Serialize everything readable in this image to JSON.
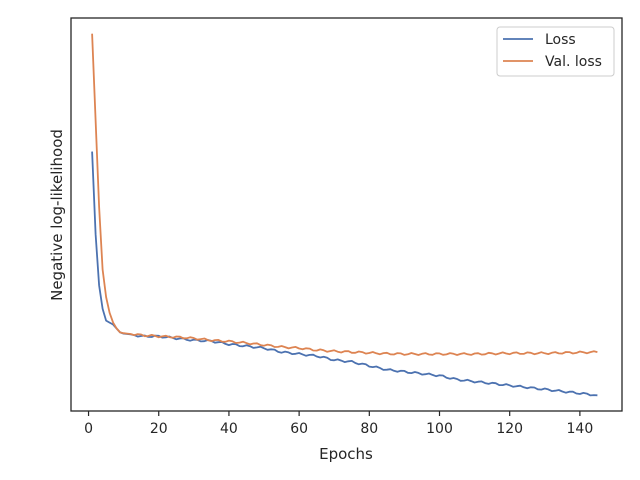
{
  "chart_data": {
    "type": "line",
    "xlabel": "Epochs",
    "ylabel": "Negative log-likelihood",
    "xlim": [
      -5,
      152
    ],
    "ylim": [
      0,
      1
    ],
    "x_ticks": [
      0,
      20,
      40,
      60,
      80,
      100,
      120,
      140
    ],
    "y_ticks_shown": false,
    "grid": false,
    "legend_position": "top-right",
    "series": [
      {
        "name": "Loss",
        "color": "#4c72b0",
        "x": [
          1,
          2,
          3,
          4,
          5,
          6,
          7,
          8,
          9,
          10,
          12,
          15,
          20,
          25,
          30,
          35,
          40,
          45,
          50,
          55,
          60,
          65,
          70,
          75,
          80,
          85,
          90,
          95,
          100,
          105,
          110,
          115,
          120,
          125,
          130,
          135,
          140,
          145
        ],
        "y": [
          0.66,
          0.45,
          0.32,
          0.26,
          0.23,
          0.225,
          0.22,
          0.21,
          0.2,
          0.197,
          0.195,
          0.19,
          0.19,
          0.185,
          0.18,
          0.178,
          0.17,
          0.165,
          0.16,
          0.15,
          0.145,
          0.14,
          0.13,
          0.125,
          0.115,
          0.105,
          0.1,
          0.095,
          0.09,
          0.08,
          0.075,
          0.07,
          0.065,
          0.06,
          0.055,
          0.05,
          0.045,
          0.04
        ]
      },
      {
        "name": "Val. loss",
        "color": "#dd8452",
        "x": [
          1,
          2,
          3,
          4,
          5,
          6,
          7,
          8,
          9,
          10,
          12,
          15,
          20,
          25,
          30,
          35,
          40,
          45,
          50,
          55,
          60,
          65,
          70,
          75,
          80,
          85,
          90,
          95,
          100,
          105,
          110,
          115,
          120,
          125,
          130,
          135,
          140,
          145
        ],
        "y": [
          0.96,
          0.74,
          0.52,
          0.36,
          0.29,
          0.25,
          0.225,
          0.21,
          0.2,
          0.198,
          0.196,
          0.193,
          0.19,
          0.188,
          0.185,
          0.18,
          0.177,
          0.173,
          0.168,
          0.163,
          0.16,
          0.155,
          0.152,
          0.15,
          0.148,
          0.146,
          0.145,
          0.145,
          0.145,
          0.145,
          0.145,
          0.146,
          0.147,
          0.147,
          0.147,
          0.148,
          0.149,
          0.15
        ]
      }
    ]
  }
}
